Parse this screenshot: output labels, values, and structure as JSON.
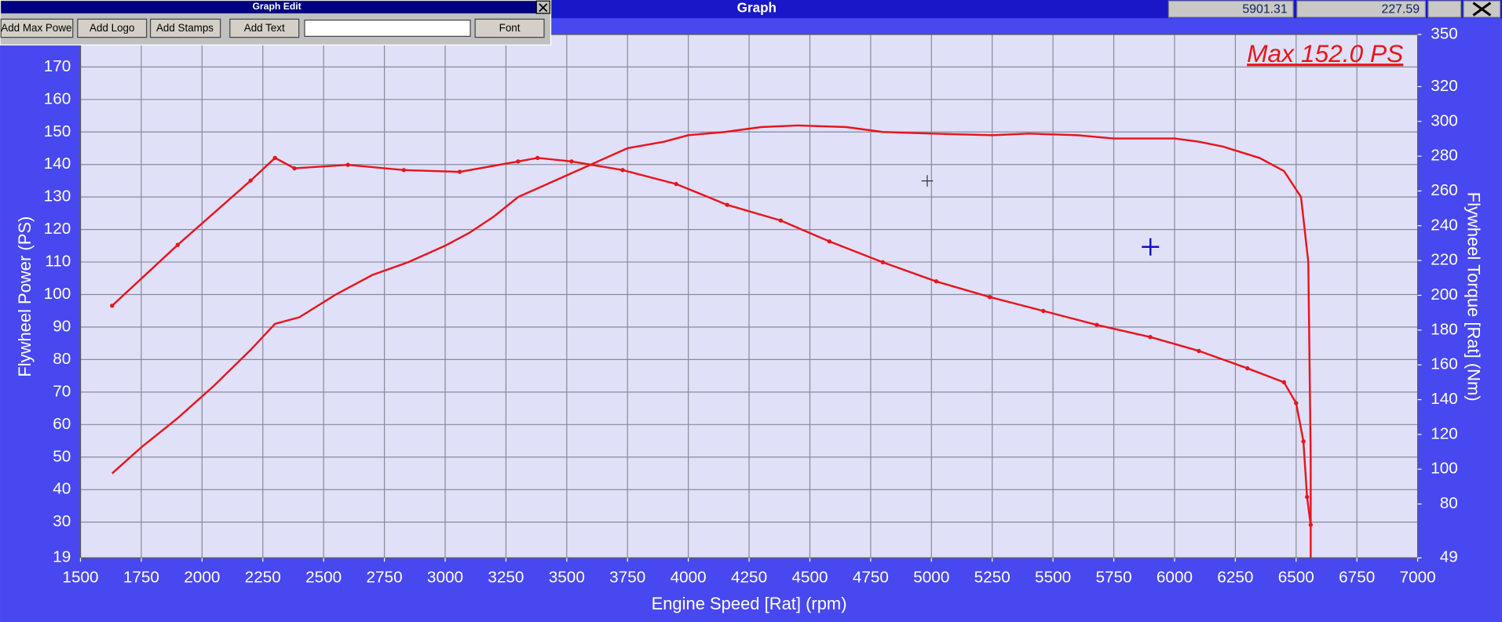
{
  "window": {
    "title": "Graph",
    "readout": [
      "5901.31",
      "227.59"
    ]
  },
  "toolbar": {
    "title": "Graph Edit",
    "buttons": [
      "Add Max Powe",
      "Add Logo",
      "Add Stamps",
      "Add Text",
      "Font"
    ]
  },
  "chart_data": {
    "type": "line",
    "annotation": "Max 152.0 PS",
    "x_label": "Engine Speed [Rat] (rpm)",
    "y_label": "Flywheel Power (PS)",
    "y2_label": "Flywheel Torque [Rat] (Nm)",
    "xlim": [
      1500,
      7000
    ],
    "xticks": [
      1500,
      1750,
      2000,
      2250,
      2500,
      2750,
      3000,
      3250,
      3500,
      3750,
      4000,
      4250,
      4500,
      4750,
      5000,
      5250,
      5500,
      5750,
      6000,
      6250,
      6500,
      6750,
      7000
    ],
    "ylim": [
      19,
      180
    ],
    "yticks": [
      19,
      30,
      40,
      50,
      60,
      70,
      80,
      90,
      100,
      110,
      120,
      130,
      140,
      150,
      160,
      170
    ],
    "y2lim": [
      49,
      350
    ],
    "y2ticks": [
      49,
      80,
      100,
      120,
      140,
      160,
      180,
      200,
      220,
      240,
      260,
      280,
      300,
      320,
      350
    ],
    "grid": true,
    "series": [
      {
        "color": "#e8141c",
        "axis": "y",
        "x": [
          1630,
          1750,
          1900,
          2050,
          2200,
          2300,
          2400,
          2550,
          2700,
          2850,
          3000,
          3100,
          3200,
          3300,
          3450,
          3600,
          3750,
          3900,
          4000,
          4150,
          4300,
          4450,
          4650,
          4800,
          5000,
          5250,
          5400,
          5600,
          5750,
          5900,
          6000,
          6100,
          6200,
          6350,
          6450,
          6520,
          6550,
          6560,
          6560
        ],
        "values": [
          45,
          53,
          62,
          72,
          83,
          91,
          93,
          100,
          106,
          110,
          115,
          119,
          124,
          130,
          135,
          140,
          145,
          147,
          149,
          150,
          151.5,
          152,
          151.5,
          150,
          149.5,
          149,
          149.5,
          149,
          148,
          148,
          148,
          147,
          145.5,
          142,
          138,
          130,
          110,
          50,
          19
        ]
      },
      {
        "color": "#e8141c",
        "axis": "y2",
        "x": [
          1630,
          1900,
          2200,
          2300,
          2380,
          2600,
          2830,
          3060,
          3300,
          3380,
          3520,
          3730,
          3950,
          4160,
          4380,
          4580,
          4800,
          5020,
          5240,
          5460,
          5680,
          5900,
          6100,
          6300,
          6450,
          6500,
          6530,
          6545,
          6560
        ],
        "values": [
          194,
          229,
          266,
          279,
          273,
          275,
          272,
          271,
          277,
          279,
          277,
          272,
          264,
          252,
          243,
          231,
          219,
          208,
          199,
          191,
          183,
          176,
          168,
          158,
          150,
          138,
          116,
          84,
          68
        ]
      }
    ]
  }
}
